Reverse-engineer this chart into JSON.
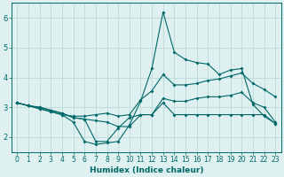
{
  "xlabel": "Humidex (Indice chaleur)",
  "bg_color": "#dff0f0",
  "grid_color": "#c0dcdc",
  "line_color": "#006868",
  "x_values": [
    0,
    1,
    2,
    3,
    4,
    5,
    6,
    7,
    8,
    9,
    10,
    11,
    12,
    13,
    14,
    15,
    16,
    17,
    18,
    19,
    20,
    21,
    22,
    23
  ],
  "series": {
    "max": [
      3.15,
      3.05,
      2.95,
      2.85,
      2.75,
      2.5,
      1.85,
      1.75,
      1.8,
      1.85,
      2.4,
      3.2,
      4.3,
      6.2,
      4.85,
      4.6,
      4.5,
      4.45,
      4.1,
      4.25,
      4.3,
      3.1,
      2.7,
      2.45
    ],
    "upper": [
      3.15,
      3.05,
      2.95,
      2.85,
      2.75,
      2.7,
      2.7,
      2.75,
      2.8,
      2.7,
      2.75,
      3.25,
      3.55,
      4.1,
      3.75,
      3.75,
      3.8,
      3.9,
      3.95,
      4.05,
      4.15,
      3.8,
      3.6,
      3.35
    ],
    "lower": [
      3.15,
      3.05,
      3.0,
      2.9,
      2.8,
      2.65,
      2.6,
      2.55,
      2.5,
      2.35,
      2.35,
      2.75,
      2.75,
      3.3,
      3.2,
      3.2,
      3.3,
      3.35,
      3.35,
      3.4,
      3.5,
      3.15,
      3.0,
      2.5
    ],
    "min": [
      3.15,
      3.05,
      3.0,
      2.9,
      2.8,
      2.65,
      2.6,
      1.85,
      1.85,
      2.3,
      2.65,
      2.75,
      2.75,
      3.15,
      2.75,
      2.75,
      2.75,
      2.75,
      2.75,
      2.75,
      2.75,
      2.75,
      2.75,
      2.45
    ]
  },
  "xlim": [
    0,
    23
  ],
  "ylim": [
    1.5,
    6.5
  ],
  "yticks": [
    2,
    3,
    4,
    5,
    6
  ],
  "xticks": [
    0,
    1,
    2,
    3,
    4,
    5,
    6,
    7,
    8,
    9,
    10,
    11,
    12,
    13,
    14,
    15,
    16,
    17,
    18,
    19,
    20,
    21,
    22,
    23
  ],
  "tick_fontsize": 5.5,
  "label_fontsize": 6.5
}
